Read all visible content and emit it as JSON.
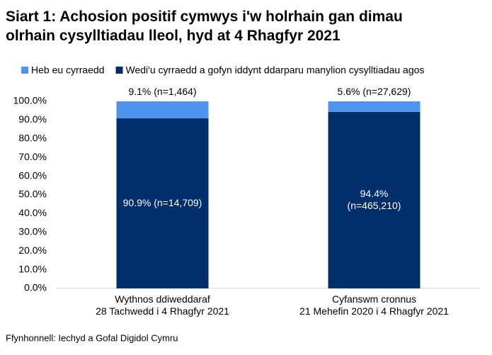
{
  "chart_data": {
    "type": "stacked_bar",
    "title": "Siart 1: Achosion positif cymwys i'w holrhain gan dimau\nolrhain cysylltiadau lleol, hyd at 4 Rhagfyr 2021",
    "categories": [
      "Wythnos ddiweddaraf\n28 Tachwedd i 4 Rhagfyr 2021",
      "Cyfanswm cronnus\n21 Mehefin 2020 i 4 Rhagfyr 2021"
    ],
    "series": [
      {
        "name": "Wedi'u cyrraedd a gofyn iddynt ddarparu manylion cysylltiadau agos",
        "color": "#002f6c",
        "values": [
          90.9,
          94.4
        ],
        "value_labels": [
          "90.9% (n=14,709)",
          "94.4%\n(n=465,210)"
        ]
      },
      {
        "name": "Heb eu cyrraedd",
        "color": "#4f94ef",
        "values": [
          9.1,
          5.6
        ],
        "value_labels": [
          "9.1% (n=1,464)",
          "5.6% (n=27,629)"
        ]
      }
    ],
    "ylim": [
      0,
      100
    ],
    "yticks": [
      {
        "value": 0,
        "label": "0.0%"
      },
      {
        "value": 10,
        "label": "10.0%"
      },
      {
        "value": 20,
        "label": "20.0%"
      },
      {
        "value": 30,
        "label": "30.0%"
      },
      {
        "value": 40,
        "label": "40.0%"
      },
      {
        "value": 50,
        "label": "50.0%"
      },
      {
        "value": 60,
        "label": "60.0%"
      },
      {
        "value": 70,
        "label": "70.0%"
      },
      {
        "value": 80,
        "label": "80.0%"
      },
      {
        "value": 90,
        "label": "90.0%"
      },
      {
        "value": 100,
        "label": "100.0%"
      }
    ],
    "grid": false,
    "source": "Ffynhonnell: Iechyd a Gofal Digidol Cymru"
  }
}
